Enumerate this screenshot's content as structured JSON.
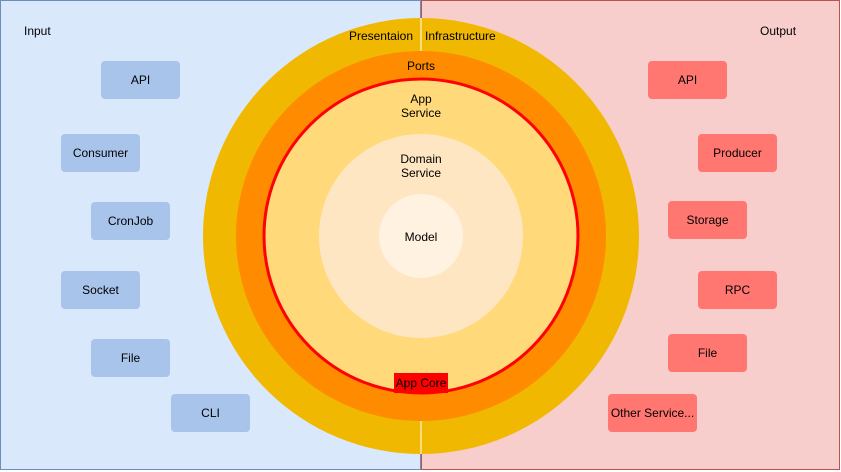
{
  "input": {
    "title": "Input",
    "items": [
      "API",
      "Consumer",
      "CronJob",
      "Socket",
      "File",
      "CLI"
    ]
  },
  "output": {
    "title": "Output",
    "items": [
      "API",
      "Producer",
      "Storage",
      "RPC",
      "File",
      "Other Service..."
    ]
  },
  "rings": {
    "presentation": "Presentaion",
    "infrastructure": "Infrastructure",
    "ports": "Ports",
    "app_service_line1": "App",
    "app_service_line2": "Service",
    "domain_service_line1": "Domain",
    "domain_service_line2": "Service",
    "model": "Model",
    "app_core": "App Core"
  },
  "colors": {
    "input_panel": "#dae8fc",
    "output_panel": "#f8cecc",
    "input_box": "#a9c4eb",
    "output_box": "#ff7770",
    "outer_ring": "#f0b800",
    "ports_ring": "#ff8c00",
    "core_border": "#ff0000",
    "app_service": "#ffd97a",
    "domain_service": "#ffe6c2",
    "model": "#fff2e0"
  }
}
